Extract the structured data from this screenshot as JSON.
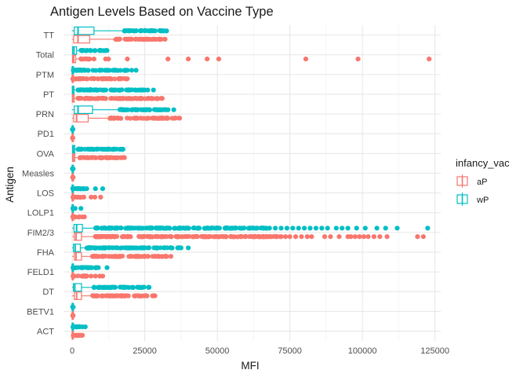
{
  "chart_data": {
    "type": "boxplot",
    "orientation": "horizontal",
    "title": "Antigen Levels Based on Vaccine Type",
    "xlabel": "MFI",
    "ylabel": "Antigen",
    "xlim": [
      -3000,
      127000
    ],
    "x_ticks": [
      0,
      25000,
      50000,
      75000,
      100000,
      125000
    ],
    "x_tick_labels": [
      "0",
      "25000",
      "50000",
      "75000",
      "100000",
      "125000"
    ],
    "grid": true,
    "legend": {
      "title": "infancy_vac",
      "position": "right",
      "entries": [
        {
          "key": "aP",
          "label": "aP",
          "color": "#F8766D"
        },
        {
          "key": "wP",
          "label": "wP",
          "color": "#00BFC4"
        }
      ]
    },
    "categories": [
      "TT",
      "Total",
      "PTM",
      "PT",
      "PRN",
      "PD1",
      "OVA",
      "Measles",
      "LOS",
      "LOLP1",
      "FIM2/3",
      "FHA",
      "FELD1",
      "DT",
      "BETV1",
      "ACT"
    ],
    "series": [
      {
        "name": "aP",
        "color": "#F8766D",
        "boxes": [
          {
            "category": "TT",
            "q1": 500,
            "median": 2000,
            "q3": 6000,
            "whisker_low": 0,
            "whisker_high": 15000,
            "outlier_range": [
              15000,
              32000
            ]
          },
          {
            "category": "Total",
            "q1": 100,
            "median": 500,
            "q3": 1200,
            "whisker_low": 0,
            "whisker_high": 2500,
            "outlier_range": [
              3000,
              6000
            ],
            "outliers": [
              7500,
              11500,
              12500,
              19000,
              33000,
              40000,
              46500,
              50500,
              80500,
              98500,
              123000
            ]
          },
          {
            "category": "PTM",
            "q1": 0,
            "median": 20,
            "q3": 60,
            "whisker_low": 0,
            "whisker_high": 150,
            "outlier_range": [
              200,
              19000
            ]
          },
          {
            "category": "PT",
            "q1": 50,
            "median": 200,
            "q3": 700,
            "whisker_low": 0,
            "whisker_high": 1500,
            "outlier_range": [
              2000,
              31000
            ]
          },
          {
            "category": "PRN",
            "q1": 500,
            "median": 1500,
            "q3": 5500,
            "whisker_low": 0,
            "whisker_high": 13000,
            "outlier_range": [
              13000,
              37000
            ]
          },
          {
            "category": "PD1",
            "q1": 0,
            "median": 5,
            "q3": 20,
            "whisker_low": 0,
            "whisker_high": 50,
            "outlier_range": [
              60,
              200
            ]
          },
          {
            "category": "OVA",
            "q1": 100,
            "median": 400,
            "q3": 900,
            "whisker_low": 0,
            "whisker_high": 1800,
            "outlier_range": [
              2000,
              18000
            ]
          },
          {
            "category": "Measles",
            "q1": 0,
            "median": 10,
            "q3": 30,
            "whisker_low": 0,
            "whisker_high": 60,
            "outlier_range": [
              80,
              300
            ]
          },
          {
            "category": "LOS",
            "q1": 0,
            "median": 10,
            "q3": 40,
            "whisker_low": 0,
            "whisker_high": 100,
            "outlier_range": [
              200,
              4000
            ],
            "outliers": [
              6500,
              7800,
              9800
            ]
          },
          {
            "category": "LOLP1",
            "q1": 0,
            "median": 5,
            "q3": 20,
            "whisker_low": 0,
            "whisker_high": 50,
            "outlier_range": [
              100,
              2500
            ],
            "outliers": [
              3500,
              4200
            ]
          },
          {
            "category": "FIM2/3",
            "q1": 700,
            "median": 1300,
            "q3": 3200,
            "whisker_low": 0,
            "whisker_high": 8000,
            "outlier_range": [
              8000,
              72000
            ],
            "outliers": [
              73500,
              75000,
              77000,
              79000,
              81000,
              82500,
              87000,
              89000,
              92000,
              95000,
              96000,
              97500,
              99000,
              100500,
              102000,
              104000,
              106000,
              108500,
              119000,
              121000
            ]
          },
          {
            "category": "FHA",
            "q1": 700,
            "median": 1300,
            "q3": 3200,
            "whisker_low": 0,
            "whisker_high": 7000,
            "outlier_range": [
              7000,
              34000
            ]
          },
          {
            "category": "FELD1",
            "q1": 0,
            "median": 10,
            "q3": 40,
            "whisker_low": 0,
            "whisker_high": 100,
            "outlier_range": [
              200,
              5000
            ],
            "outliers": [
              6500,
              8000,
              9500,
              10500
            ]
          },
          {
            "category": "DT",
            "q1": 700,
            "median": 1500,
            "q3": 3200,
            "whisker_low": 0,
            "whisker_high": 7000,
            "outlier_range": [
              7000,
              28500
            ]
          },
          {
            "category": "BETV1",
            "q1": 0,
            "median": 5,
            "q3": 20,
            "whisker_low": 0,
            "whisker_high": 50,
            "outlier_range": [
              60,
              300
            ]
          },
          {
            "category": "ACT",
            "q1": 0,
            "median": 20,
            "q3": 60,
            "whisker_low": 0,
            "whisker_high": 150,
            "outlier_range": [
              200,
              3500
            ]
          }
        ]
      },
      {
        "name": "wP",
        "color": "#00BFC4",
        "boxes": [
          {
            "category": "TT",
            "q1": 700,
            "median": 2000,
            "q3": 7500,
            "whisker_low": 0,
            "whisker_high": 18000,
            "outlier_range": [
              18000,
              32500
            ]
          },
          {
            "category": "Total",
            "q1": 100,
            "median": 600,
            "q3": 1500,
            "whisker_low": 0,
            "whisker_high": 3000,
            "outlier_range": [
              3000,
              12000
            ]
          },
          {
            "category": "PTM",
            "q1": 0,
            "median": 20,
            "q3": 60,
            "whisker_low": 0,
            "whisker_high": 150,
            "outlier_range": [
              200,
              19000
            ],
            "outliers": [
              20500,
              22000
            ]
          },
          {
            "category": "PT",
            "q1": 50,
            "median": 150,
            "q3": 600,
            "whisker_low": 0,
            "whisker_high": 1500,
            "outlier_range": [
              2000,
              25000
            ],
            "outliers": [
              26000,
              28000
            ]
          },
          {
            "category": "PRN",
            "q1": 700,
            "median": 2000,
            "q3": 7000,
            "whisker_low": 0,
            "whisker_high": 16000,
            "outlier_range": [
              16000,
              33000
            ],
            "outliers": [
              35000
            ]
          },
          {
            "category": "PD1",
            "q1": 0,
            "median": 5,
            "q3": 20,
            "whisker_low": 0,
            "whisker_high": 50,
            "outlier_range": [
              60,
              200
            ]
          },
          {
            "category": "OVA",
            "q1": 100,
            "median": 400,
            "q3": 900,
            "whisker_low": 0,
            "whisker_high": 1800,
            "outlier_range": [
              2000,
              17500
            ]
          },
          {
            "category": "Measles",
            "q1": 0,
            "median": 10,
            "q3": 30,
            "whisker_low": 0,
            "whisker_high": 60,
            "outlier_range": [
              80,
              300
            ]
          },
          {
            "category": "LOS",
            "q1": 0,
            "median": 10,
            "q3": 40,
            "whisker_low": 0,
            "whisker_high": 100,
            "outlier_range": [
              200,
              5000
            ],
            "outliers": [
              8000,
              10500
            ]
          },
          {
            "category": "LOLP1",
            "q1": 0,
            "median": 5,
            "q3": 20,
            "whisker_low": 0,
            "whisker_high": 50,
            "outlier_range": [
              100,
              1000
            ],
            "outliers": [
              3000
            ]
          },
          {
            "category": "FIM2/3",
            "q1": 600,
            "median": 1500,
            "q3": 3500,
            "whisker_low": 0,
            "whisker_high": 8000,
            "outlier_range": [
              8000,
              68000
            ],
            "outliers": [
              70000,
              72000,
              74000,
              76000,
              78000,
              80000,
              82000,
              84000,
              86000,
              88000,
              91000,
              93000,
              95000,
              98000,
              101000,
              105000,
              108000,
              112000,
              122500
            ]
          },
          {
            "category": "FHA",
            "q1": 400,
            "median": 1000,
            "q3": 2800,
            "whisker_low": 0,
            "whisker_high": 5000,
            "outlier_range": [
              5000,
              37500
            ],
            "outliers": [
              40000
            ]
          },
          {
            "category": "FELD1",
            "q1": 0,
            "median": 10,
            "q3": 40,
            "whisker_low": 0,
            "whisker_high": 100,
            "outlier_range": [
              200,
              9000
            ],
            "outliers": [
              12000
            ]
          },
          {
            "category": "DT",
            "q1": 400,
            "median": 900,
            "q3": 3200,
            "whisker_low": 0,
            "whisker_high": 7500,
            "outlier_range": [
              7500,
              26500
            ]
          },
          {
            "category": "BETV1",
            "q1": 0,
            "median": 5,
            "q3": 20,
            "whisker_low": 0,
            "whisker_high": 50,
            "outlier_range": [
              60,
              300
            ]
          },
          {
            "category": "ACT",
            "q1": 0,
            "median": 20,
            "q3": 60,
            "whisker_low": 0,
            "whisker_high": 150,
            "outlier_range": [
              200,
              3500
            ],
            "outliers": [
              4500
            ]
          }
        ]
      }
    ]
  }
}
